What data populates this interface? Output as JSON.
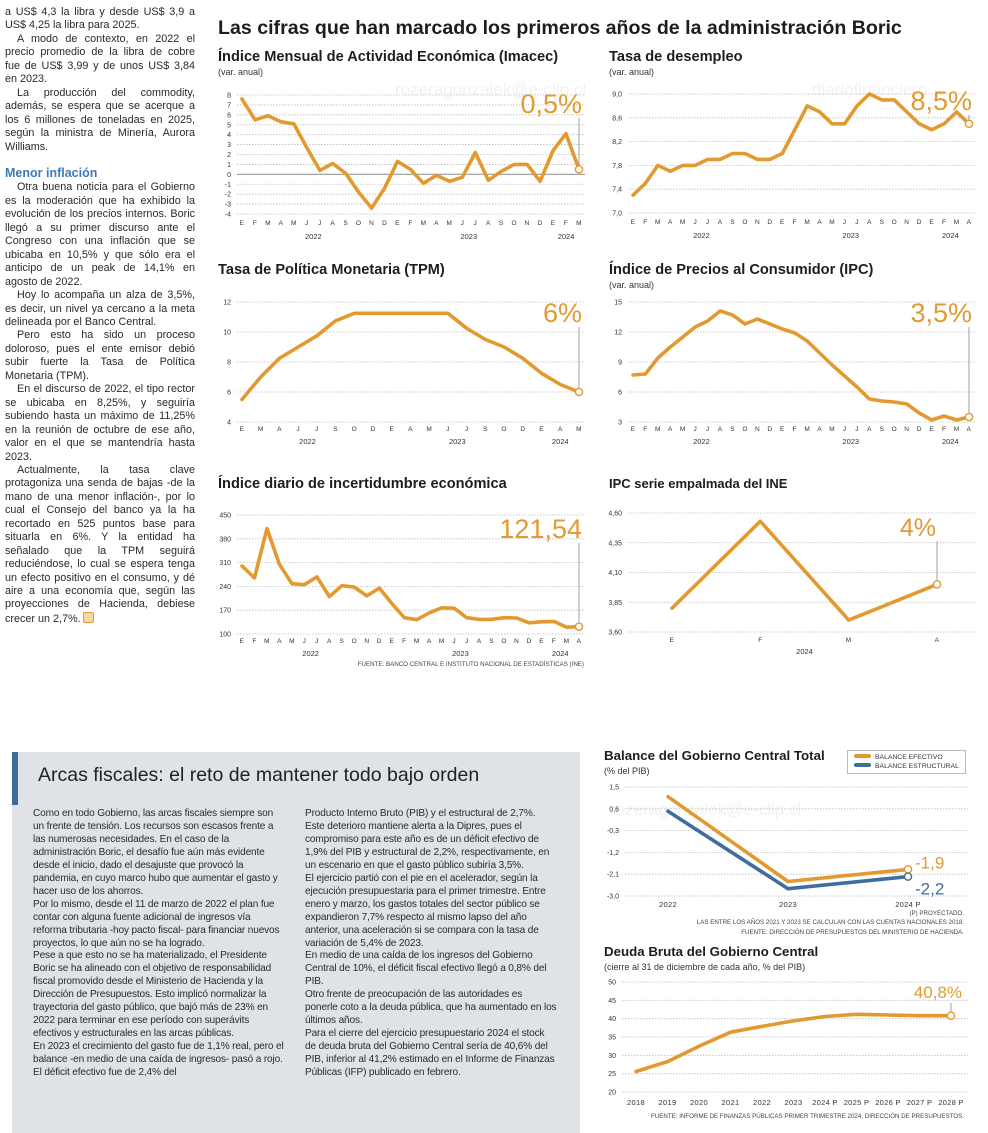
{
  "watermarks": [
    "rozeragonzalek@e-clip.cl",
    "diariofinanciero"
  ],
  "left_column": {
    "paragraphs_before": [
      "a US$ 4,3 la libra y desde US$ 3,9 a US$ 4,25 la libra para 2025.",
      "A modo de contexto, en 2022 el precio promedio de la libra de cobre fue de US$ 3,99 y de unos US$ 3,84 en 2023.",
      "La producción del commodity, además, se espera que se acerque a los 6 millones de toneladas en 2025, según la ministra de Minería, Aurora Williams."
    ],
    "subheading": "Menor inflación",
    "paragraphs_after": [
      "Otra buena noticia para el Gobierno es la moderación que ha exhibido la evolución de los precios internos. Boric llegó a su primer discurso ante el Congreso con una inflación que se ubicaba en 10,5% y que sólo era el anticipo de un peak de 14,1% en agosto de 2022.",
      "Hoy lo acompaña un alza de 3,5%, es decir, un nivel ya cercano a la meta delineada por el Banco Central.",
      "Pero esto ha sido un proceso doloroso, pues el ente emisor debió subir fuerte la Tasa de Política Monetaria (TPM).",
      "En el discurso de 2022, el tipo rector se ubicaba en 8,25%, y seguiría subiendo hasta un máximo de 11,25% en la reunión de octubre de ese año, valor en el que se mantendría hasta 2023.",
      "Actualmente, la tasa clave protagoniza una senda de bajas -de la mano de una menor inflación-, por lo cual el Consejo del banco ya la ha recortado en 525 puntos base para situarla en 6%. Y la entidad ha señalado que la TPM seguirá reduciéndose, lo cual se espera tenga un efecto positivo en el consumo, y dé aire a una economía que, según las proyecciones de Hacienda, debiese crecer un 2,7%."
    ]
  },
  "headline": "Las cifras que han marcado los primeros años de la administración Boric",
  "fiscal_box": {
    "title": "Arcas fiscales: el reto de mantener todo bajo orden",
    "column1": [
      "Como en todo Gobierno, las arcas fiscales siempre son un frente de tensión. Los recursos son escasos frente a las numerosas necesidades. En el caso de la administración Boric, el desafío fue aún más evidente desde el inicio, dado el desajuste que provocó la pandemia, en cuyo marco hubo que aumentar el gasto y hacer uso de los ahorros.",
      "Por lo mismo, desde el 11 de marzo de 2022 el plan fue contar con alguna fuente adicional de ingresos vía reforma tributaria -hoy pacto fiscal- para financiar nuevos proyectos, lo que aún no se ha logrado.",
      "Pese a que esto no se ha materializado, el Presidente Boric se ha alineado con el objetivo de responsabilidad fiscal promovido desde el Ministerio de Hacienda y la Dirección de Presupuestos. Esto implicó normalizar la trayectoria del gasto público, que bajó más de 23% en 2022 para terminar en ese período con superávits efectivos y estructurales en las arcas públicas.",
      "En 2023 el crecimiento del gasto fue de 1,1% real, pero el balance -en medio de una caída de ingresos- pasó a rojo. El déficit efectivo fue de 2,4% del"
    ],
    "column2": [
      "Producto Interno Bruto (PIB) y el estructural de 2,7%. Este deterioro mantiene alerta a la Dipres, pues el compromiso para este año es de un déficit efectivo de 1,9% del PIB y estructural de 2,2%, respectivamente, en un escenario en que el gasto público subiría 3,5%.",
      "El ejercicio partió con el pie en el acelerador, según la ejecución presupuestaria para el primer trimestre. Entre enero y marzo, los gastos totales del sector público se expandieron 7,7% respecto al mismo lapso del año anterior, una aceleración si se compara con la tasa de variación de 5,4% de 2023.",
      "En medio de una caída de los ingresos del Gobierno Central de 10%, el déficit fiscal efectivo llegó a 0,8% del PIB.",
      "Otro frente de preocupación de las autoridades es ponerle coto a la deuda pública, que ha aumentado en los últimos años.",
      "Para el cierre del ejercicio presupuestario 2024 el stock de deuda bruta del Gobierno Central sería de 40,6% del PIB, inferior al 41,2% estimado en el Informe de Finanzas Públicas (IFP) publicado en febrero."
    ]
  },
  "colors": {
    "orange": "#e29a30",
    "blue": "#3f6e9e",
    "accent_heading": "#3c7ab8",
    "box_bg": "#dfe3e8"
  },
  "chart_data": [
    {
      "type": "line",
      "title": "Índice Mensual de Actividad Económica (Imacec)",
      "subtitle": "(var. anual)",
      "categories": [
        "E",
        "F",
        "M",
        "A",
        "M",
        "J",
        "J",
        "A",
        "S",
        "O",
        "N",
        "D",
        "E",
        "F",
        "M",
        "A",
        "M",
        "J",
        "J",
        "A",
        "S",
        "O",
        "N",
        "D",
        "E",
        "F",
        "M"
      ],
      "year_groups": [
        {
          "label": "2022",
          "count": 12
        },
        {
          "label": "2023",
          "count": 12
        },
        {
          "label": "2024",
          "count": 3
        }
      ],
      "yticks": [
        "8",
        "7",
        "6",
        "5",
        "4",
        "3",
        "2",
        "1",
        "0",
        "-1",
        "-2",
        "-3",
        "-4"
      ],
      "ylim": [
        -4,
        8
      ],
      "zero_line": true,
      "series": [
        {
          "color": "#e29a30",
          "values": [
            7.6,
            5.5,
            5.9,
            5.3,
            5.1,
            2.7,
            0.4,
            1.1,
            0.1,
            -1.8,
            -3.4,
            -1.4,
            1.3,
            0.5,
            -0.9,
            -0.1,
            -0.7,
            -0.3,
            2.2,
            -0.6,
            0.3,
            1.0,
            1.0,
            -0.7,
            2.4,
            4.1,
            0.5
          ]
        }
      ],
      "highlight": "0,5%"
    },
    {
      "type": "line",
      "title": "Tasa de desempleo",
      "subtitle": "(var. anual)",
      "categories": [
        "E",
        "F",
        "M",
        "A",
        "M",
        "J",
        "J",
        "A",
        "S",
        "O",
        "N",
        "D",
        "E",
        "F",
        "M",
        "A",
        "M",
        "J",
        "J",
        "A",
        "S",
        "O",
        "N",
        "D",
        "E",
        "F",
        "M",
        "A"
      ],
      "year_groups": [
        {
          "label": "2022",
          "count": 12
        },
        {
          "label": "2023",
          "count": 12
        },
        {
          "label": "2024",
          "count": 4
        }
      ],
      "yticks": [
        "9,0",
        "8,6",
        "8,2",
        "7,8",
        "7,4",
        "7,0"
      ],
      "ylim": [
        7.0,
        9.0
      ],
      "series": [
        {
          "color": "#e29a30",
          "values": [
            7.3,
            7.5,
            7.8,
            7.7,
            7.8,
            7.8,
            7.9,
            7.9,
            8.0,
            8.0,
            7.9,
            7.9,
            8.0,
            8.4,
            8.8,
            8.7,
            8.5,
            8.5,
            8.8,
            9.0,
            8.9,
            8.9,
            8.7,
            8.5,
            8.4,
            8.5,
            8.7,
            8.5
          ]
        }
      ],
      "highlight": "8,5%"
    },
    {
      "type": "line",
      "title": "Tasa de Política Monetaria (TPM)",
      "subtitle": "",
      "categories": [
        "E",
        "M",
        "A",
        "J",
        "J",
        "S",
        "O",
        "D",
        "E",
        "A",
        "M",
        "J",
        "J",
        "S",
        "O",
        "D",
        "E",
        "A",
        "M"
      ],
      "year_groups": [
        {
          "label": "2022",
          "count": 8
        },
        {
          "label": "2023",
          "count": 8
        },
        {
          "label": "2024",
          "count": 3
        }
      ],
      "yticks": [
        "12",
        "10",
        "8",
        "6",
        "4"
      ],
      "ylim": [
        4,
        12
      ],
      "series": [
        {
          "color": "#e29a30",
          "values": [
            5.5,
            7.0,
            8.25,
            9.0,
            9.75,
            10.75,
            11.25,
            11.25,
            11.25,
            11.25,
            11.25,
            11.25,
            10.25,
            9.5,
            9.0,
            8.25,
            7.25,
            6.5,
            6.0
          ]
        }
      ],
      "highlight": "6%"
    },
    {
      "type": "line",
      "title": "Índice de Precios al Consumidor (IPC)",
      "subtitle": "(var. anual)",
      "categories": [
        "E",
        "F",
        "M",
        "A",
        "M",
        "J",
        "J",
        "A",
        "S",
        "O",
        "N",
        "D",
        "E",
        "F",
        "M",
        "A",
        "M",
        "J",
        "J",
        "A",
        "S",
        "O",
        "N",
        "D",
        "E",
        "F",
        "M",
        "A"
      ],
      "year_groups": [
        {
          "label": "2022",
          "count": 12
        },
        {
          "label": "2023",
          "count": 12
        },
        {
          "label": "2024",
          "count": 4
        }
      ],
      "yticks": [
        "15",
        "12",
        "9",
        "6",
        "3"
      ],
      "ylim": [
        3,
        15
      ],
      "series": [
        {
          "color": "#e29a30",
          "values": [
            7.7,
            7.8,
            9.4,
            10.5,
            11.5,
            12.5,
            13.1,
            14.1,
            13.7,
            12.8,
            13.3,
            12.8,
            12.3,
            11.9,
            11.1,
            9.9,
            8.7,
            7.6,
            6.5,
            5.3,
            5.1,
            5.0,
            4.8,
            3.9,
            3.2,
            3.6,
            3.2,
            3.5
          ]
        }
      ],
      "highlight": "3,5%"
    },
    {
      "type": "line",
      "title": "Índice diario de incertidumbre económica",
      "subtitle": "",
      "categories": [
        "E",
        "F",
        "M",
        "A",
        "M",
        "J",
        "J",
        "A",
        "S",
        "O",
        "N",
        "D",
        "E",
        "F",
        "M",
        "A",
        "M",
        "J",
        "J",
        "A",
        "S",
        "O",
        "N",
        "D",
        "E",
        "F",
        "M",
        "A"
      ],
      "year_groups": [
        {
          "label": "2022",
          "count": 12
        },
        {
          "label": "2023",
          "count": 12
        },
        {
          "label": "2024",
          "count": 4
        }
      ],
      "yticks": [
        "450",
        "380",
        "310",
        "240",
        "170",
        "100"
      ],
      "ylim": [
        100,
        450
      ],
      "series": [
        {
          "color": "#e29a30",
          "values": [
            300,
            265,
            410,
            305,
            248,
            245,
            268,
            210,
            242,
            238,
            212,
            235,
            190,
            148,
            142,
            162,
            177,
            176,
            148,
            143,
            143,
            148,
            147,
            133,
            136,
            137,
            120,
            121.54
          ]
        }
      ],
      "highlight": "121,54",
      "source": "FUENTE: BANCO CENTRAL E INSTITUTO NACIONAL DE ESTADÍSTICAS (INE)"
    },
    {
      "type": "line",
      "title": "IPC serie empalmada del INE",
      "subtitle": "",
      "categories": [
        "E",
        "F",
        "M",
        "A"
      ],
      "year_groups": [
        {
          "label": "2024",
          "count": 4
        }
      ],
      "yticks": [
        "4,60",
        "4,35",
        "4,10",
        "3,85",
        "3,60"
      ],
      "ylim": [
        3.6,
        4.6
      ],
      "series": [
        {
          "color": "#e29a30",
          "values": [
            3.8,
            4.53,
            3.7,
            4.0
          ]
        }
      ],
      "highlight": "4%"
    },
    {
      "type": "line",
      "title": "Balance del Gobierno Central Total",
      "subtitle": "(% del PIB)",
      "categories": [
        "2022",
        "2023",
        "2024 P"
      ],
      "yticks": [
        "1,5",
        "0,6",
        "-0,3",
        "-1,2",
        "-2,1",
        "-3,0"
      ],
      "ylim": [
        -3.0,
        1.5
      ],
      "legend_position": "top-right",
      "series": [
        {
          "name": "BALANCE EFECTIVO",
          "color": "#e29a30",
          "values": [
            1.1,
            -2.4,
            -1.9
          ],
          "end_label": "-1,9"
        },
        {
          "name": "BALANCE ESTRUCTURAL",
          "color": "#3f6e9e",
          "values": [
            0.5,
            -2.7,
            -2.2
          ],
          "end_label": "-2,2"
        }
      ],
      "notes": [
        "(P) PROYECTADO.",
        "LAS ENTRE LOS AÑOS 2021 Y 2023 SE CALCULAN  CON LAS CUENTAS NACIONALES 2018.",
        "FUENTE: DIRECCIÓN DE PRESUPUESTOS DEL MINISTERIO DE HACIENDA."
      ]
    },
    {
      "type": "line",
      "title": "Deuda Bruta del Gobierno Central",
      "subtitle": "(cierre al 31 de diciembre de cada año, % del PIB)",
      "categories": [
        "2018",
        "2019",
        "2020",
        "2021",
        "2022",
        "2023",
        "2024 P",
        "2025 P",
        "2026 P",
        "2027 P",
        "2028 P"
      ],
      "yticks": [
        "50",
        "45",
        "40",
        "35",
        "30",
        "25",
        "20"
      ],
      "ylim": [
        20,
        50
      ],
      "series": [
        {
          "color": "#e29a30",
          "values": [
            25.6,
            28.3,
            32.5,
            36.3,
            37.9,
            39.4,
            40.6,
            41.2,
            41.0,
            40.8,
            40.8
          ]
        }
      ],
      "highlight": "40,8%",
      "source": "FUENTE: INFORME DE FINANZAS PÚBLICAS PRIMER TRIMESTRE 2024, DIRECCIÓN DE PRESUPUESTOS."
    }
  ]
}
